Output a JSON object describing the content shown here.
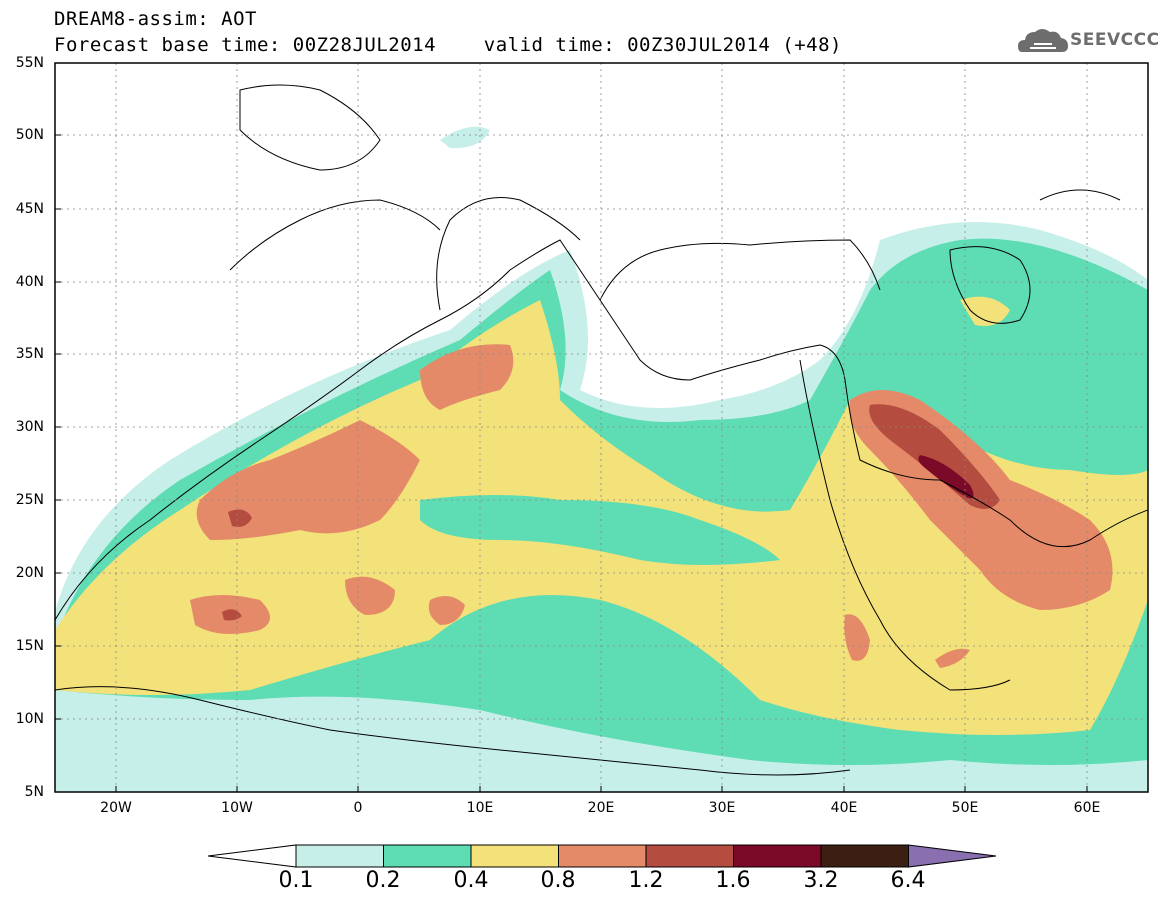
{
  "header": {
    "title_line1": "DREAM8-assim: AOT",
    "title_line2": "Forecast base time: 00Z28JUL2014    valid time: 00Z30JUL2014 (+48)",
    "logo_text": "SEEVCCC",
    "logo_icon": "cloud-icon"
  },
  "map": {
    "variable": "AOT",
    "lat_labels": [
      "55N",
      "50N",
      "45N",
      "40N",
      "35N",
      "30N",
      "25N",
      "20N",
      "15N",
      "10N",
      "5N"
    ],
    "lon_labels": [
      "20W",
      "10W",
      "0",
      "10E",
      "20E",
      "30E",
      "40E",
      "50E",
      "60E"
    ],
    "lat_range": [
      5,
      55
    ],
    "lon_range": [
      -25,
      65
    ]
  },
  "colorbar": {
    "labels": [
      "0.1",
      "0.2",
      "0.4",
      "0.8",
      "1.2",
      "1.6",
      "3.2",
      "6.4"
    ],
    "colors": [
      "#c6efe9",
      "#5edcb3",
      "#f3e27a",
      "#e58a68",
      "#b54c40",
      "#7a0a27",
      "#3d1e12",
      "#8a6fb0"
    ],
    "under_color": "#ffffff",
    "over_color": "#8a6fb0"
  }
}
